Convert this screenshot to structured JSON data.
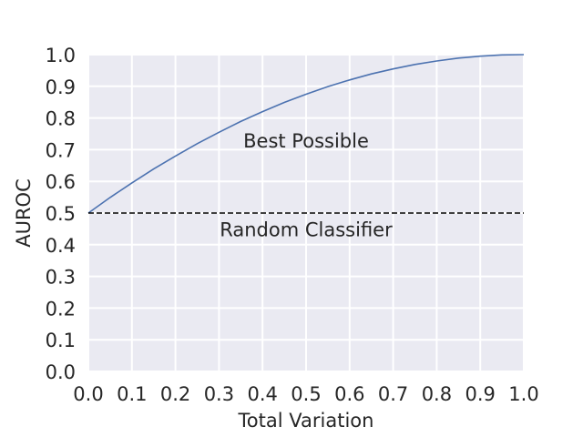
{
  "chart_data": {
    "type": "line",
    "title": "",
    "xlabel": "Total Variation",
    "ylabel": "AUROC",
    "xlim": [
      0.0,
      1.0
    ],
    "ylim": [
      0.0,
      1.0
    ],
    "xticks": [
      "0.0",
      "0.1",
      "0.2",
      "0.3",
      "0.4",
      "0.5",
      "0.6",
      "0.7",
      "0.8",
      "0.9",
      "1.0"
    ],
    "yticks": [
      "0.0",
      "0.1",
      "0.2",
      "0.3",
      "0.4",
      "0.5",
      "0.6",
      "0.7",
      "0.8",
      "0.9",
      "1.0"
    ],
    "grid": true,
    "series": [
      {
        "style": "solid",
        "color": "#4c72b0",
        "x": [
          0.0,
          0.05,
          0.1,
          0.15,
          0.2,
          0.25,
          0.3,
          0.35,
          0.4,
          0.45,
          0.5,
          0.55,
          0.6,
          0.65,
          0.7,
          0.75,
          0.8,
          0.85,
          0.9,
          0.95,
          1.0
        ],
        "y": [
          0.5,
          0.549,
          0.595,
          0.639,
          0.68,
          0.719,
          0.755,
          0.789,
          0.82,
          0.849,
          0.875,
          0.899,
          0.92,
          0.939,
          0.955,
          0.969,
          0.98,
          0.989,
          0.995,
          0.999,
          1.0
        ]
      },
      {
        "style": "dashed",
        "color": "#000000",
        "x": [
          0.0,
          1.0
        ],
        "y": [
          0.5,
          0.5
        ]
      }
    ],
    "annotations": [
      {
        "text": "Best Possible",
        "x": 0.5,
        "y": 0.73
      },
      {
        "text": "Random Classifier",
        "x": 0.5,
        "y": 0.45
      }
    ],
    "colors": {
      "background": "#eaeaf2",
      "grid": "#ffffff"
    }
  }
}
